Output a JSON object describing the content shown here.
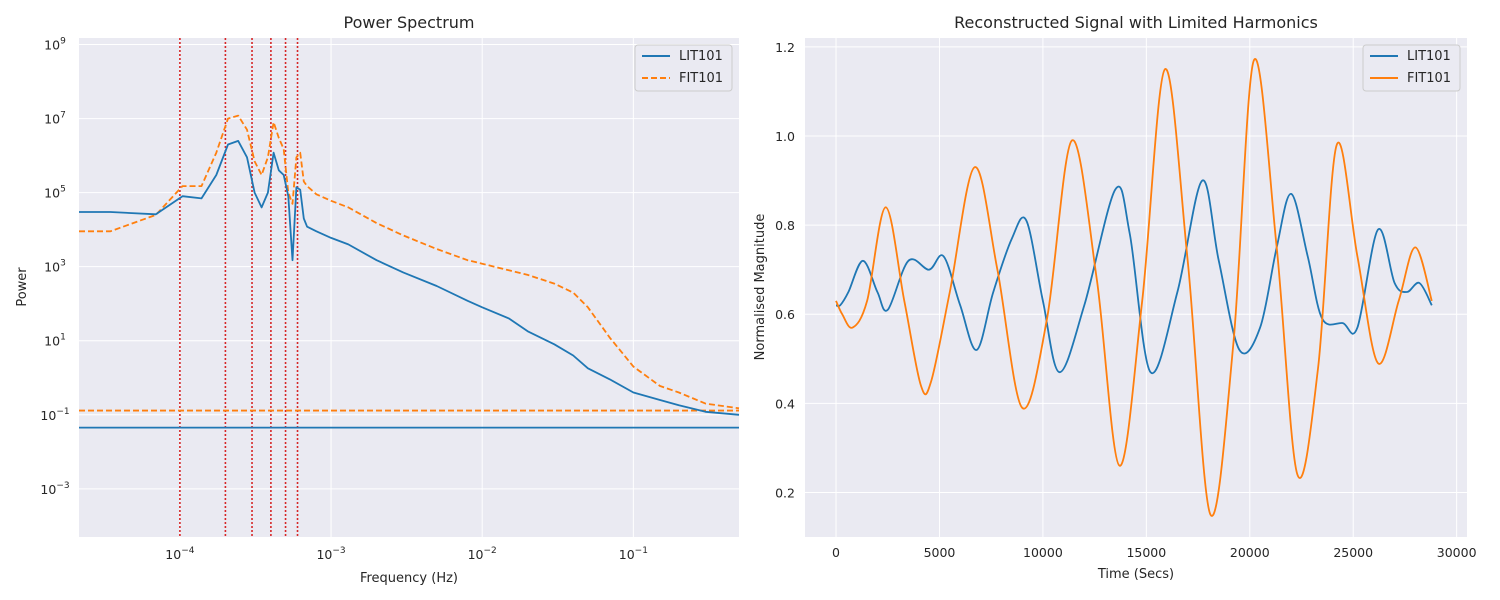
{
  "colors": {
    "axes_bg": "#eaeaf2",
    "grid": "#ffffff",
    "lit101": "#1f77b4",
    "fit101": "#ff7f0e",
    "marker_lines": "#d62728"
  },
  "chart_data": [
    {
      "type": "line",
      "title": "Power Spectrum",
      "xlabel": "Frequency (Hz)",
      "ylabel": "Power",
      "xscale": "log",
      "yscale": "log",
      "xlim": [
        2.15e-05,
        0.5
      ],
      "ylim": [
        5e-05,
        1500000000
      ],
      "x_ticks": [
        "10^-4",
        "10^-3",
        "10^-2",
        "10^-1"
      ],
      "y_ticks": [
        "10^-3",
        "10^-1",
        "10^1",
        "10^3",
        "10^5",
        "10^7",
        "10^9"
      ],
      "grid": true,
      "legend_position": "top-right",
      "vertical_markers_hz": [
        0.0001,
        0.0002,
        0.0003,
        0.0004,
        0.0005,
        0.0006
      ],
      "series": [
        {
          "name": "LIT101",
          "line_style": "solid",
          "x": [
            2.15e-05,
            3.47e-05,
            6.94e-05,
            0.000104,
            0.000139,
            0.000174,
            0.000208,
            0.000243,
            0.000278,
            0.000312,
            0.000347,
            0.000382,
            0.000417,
            0.000451,
            0.000486,
            0.000521,
            0.000556,
            0.00059,
            0.000625,
            0.00066,
            0.000694,
            0.0008,
            0.001,
            0.0013,
            0.002,
            0.003,
            0.005,
            0.008,
            0.01,
            0.015,
            0.02,
            0.03,
            0.04,
            0.05,
            0.07,
            0.1,
            0.15,
            0.2,
            0.3,
            0.5
          ],
          "y": [
            30000,
            30000,
            26000,
            80000,
            70000,
            300000,
            2000000,
            2500000,
            900000,
            100000,
            40000,
            100000,
            1200000,
            400000,
            300000,
            80000,
            1500,
            140000,
            120000,
            20000,
            12000,
            9000,
            6000,
            4000,
            1500,
            700,
            300,
            120,
            80,
            40,
            18,
            8,
            4,
            1.8,
            0.9,
            0.4,
            0.25,
            0.18,
            0.12,
            0.1
          ]
        },
        {
          "name": "FIT101",
          "line_style": "dashed",
          "x": [
            2.15e-05,
            3.47e-05,
            6.94e-05,
            0.000104,
            0.000139,
            0.000174,
            0.000208,
            0.000243,
            0.000278,
            0.000312,
            0.000347,
            0.000382,
            0.000417,
            0.000451,
            0.000486,
            0.000521,
            0.000556,
            0.00059,
            0.000625,
            0.00066,
            0.000694,
            0.0008,
            0.001,
            0.0013,
            0.002,
            0.003,
            0.005,
            0.008,
            0.01,
            0.015,
            0.02,
            0.03,
            0.04,
            0.05,
            0.07,
            0.1,
            0.15,
            0.2,
            0.3,
            0.5
          ],
          "y": [
            9000,
            9000,
            25000,
            150000,
            150000,
            1200000,
            10000000,
            12000000,
            5000000,
            700000,
            300000,
            900000,
            8000000,
            3000000,
            1500000,
            100000,
            50000,
            900000,
            1200000,
            200000,
            150000,
            90000,
            60000,
            40000,
            15000,
            7000,
            3000,
            1500,
            1200,
            800,
            600,
            350,
            200,
            80,
            12,
            2,
            0.6,
            0.4,
            0.2,
            0.15
          ]
        }
      ],
      "baseline_lines": [
        {
          "series": "LIT101",
          "y": 0.045
        },
        {
          "series": "FIT101",
          "y": 0.13
        }
      ]
    },
    {
      "type": "line",
      "title": "Reconstructed Signal with Limited Harmonics",
      "xlabel": "Time (Secs)",
      "ylabel": "Normalised Magnitude",
      "xlim": [
        -1500,
        30500
      ],
      "ylim": [
        0.1,
        1.22
      ],
      "x_ticks": [
        0,
        5000,
        10000,
        15000,
        20000,
        25000,
        30000
      ],
      "y_ticks": [
        0.2,
        0.4,
        0.6,
        0.8,
        1.0,
        1.2
      ],
      "grid": true,
      "legend_position": "top-right",
      "series": [
        {
          "name": "LIT101",
          "line_style": "solid",
          "x": [
            0,
            200,
            600,
            1300,
            2000,
            2500,
            3500,
            4500,
            5200,
            6000,
            6800,
            7600,
            8500,
            9200,
            10000,
            10800,
            12000,
            13500,
            14200,
            15200,
            16500,
            17700,
            18500,
            19500,
            20500,
            21300,
            22000,
            22800,
            23500,
            24500,
            25200,
            26200,
            27000,
            27600,
            28200,
            28800
          ],
          "y": [
            0.62,
            0.62,
            0.65,
            0.72,
            0.65,
            0.61,
            0.72,
            0.7,
            0.73,
            0.62,
            0.52,
            0.65,
            0.77,
            0.81,
            0.63,
            0.47,
            0.62,
            0.88,
            0.78,
            0.47,
            0.65,
            0.9,
            0.72,
            0.52,
            0.57,
            0.75,
            0.87,
            0.73,
            0.59,
            0.58,
            0.57,
            0.79,
            0.67,
            0.65,
            0.67,
            0.62
          ]
        },
        {
          "name": "FIT101",
          "line_style": "solid",
          "x": [
            0,
            300,
            800,
            1500,
            2400,
            3300,
            4100,
            4600,
            5500,
            6700,
            7800,
            9000,
            10200,
            11400,
            12600,
            13700,
            14800,
            15900,
            17000,
            18100,
            19200,
            20200,
            21300,
            22300,
            23300,
            24200,
            25200,
            26200,
            27200,
            28000,
            28800
          ],
          "y": [
            0.63,
            0.6,
            0.57,
            0.63,
            0.84,
            0.63,
            0.44,
            0.45,
            0.65,
            0.93,
            0.7,
            0.39,
            0.59,
            0.99,
            0.68,
            0.26,
            0.63,
            1.15,
            0.72,
            0.15,
            0.53,
            1.17,
            0.75,
            0.24,
            0.48,
            0.98,
            0.73,
            0.49,
            0.63,
            0.75,
            0.63
          ]
        }
      ]
    }
  ]
}
